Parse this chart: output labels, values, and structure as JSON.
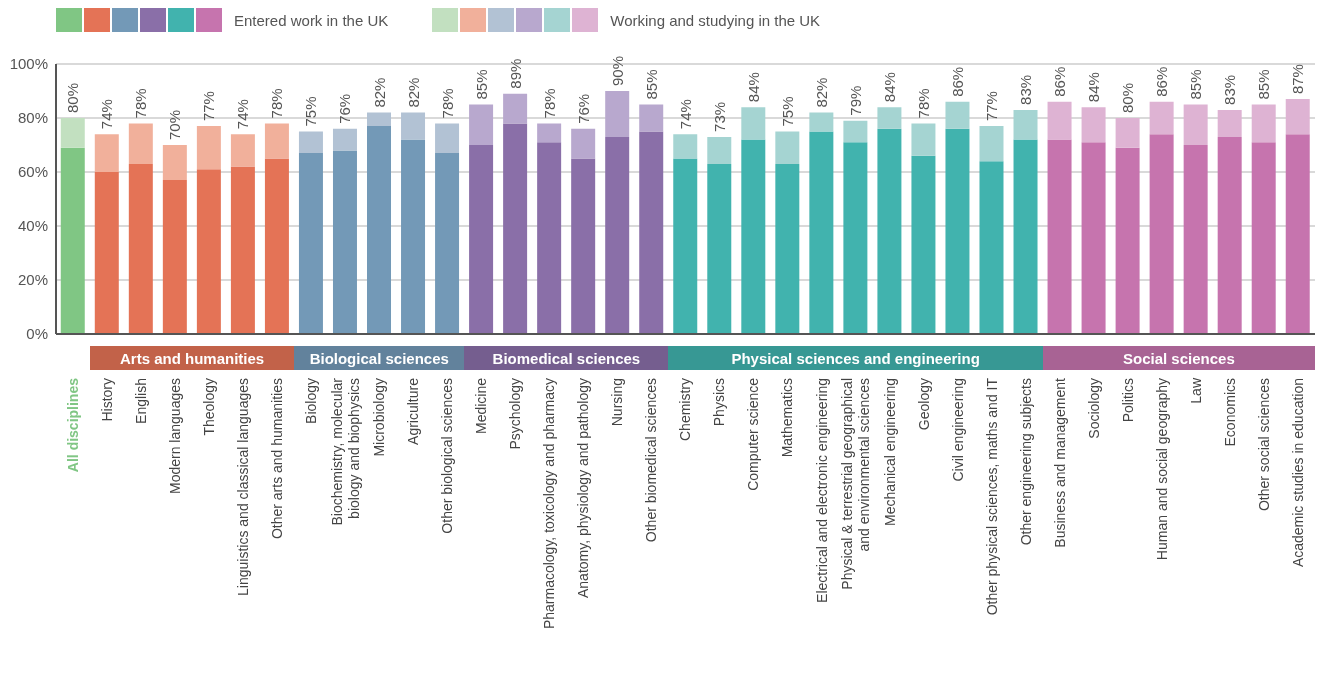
{
  "chart_data": {
    "type": "bar",
    "stacked": true,
    "categories": [
      "All disciplines",
      "History",
      "English",
      "Modern languages",
      "Theology",
      "Linguistics and classical languages",
      "Other arts and humanities",
      "Biology",
      "Biochemistry, molecular biology and biophysics",
      "Microbiology",
      "Agriculture",
      "Other biological sciences",
      "Medicine",
      "Psychology",
      "Pharmacology, toxicology and pharmacy",
      "Anatomy, physiology and pathology",
      "Nursing",
      "Other biomedical sciences",
      "Chemistry",
      "Physics",
      "Computer science",
      "Mathematics",
      "Electrical and electronic engineering",
      "Physical & terrestrial geographical and environmental sciences",
      "Mechanical engineering",
      "Geology",
      "Civil engineering",
      "Other physical sciences, maths and IT",
      "Other engineering subjects",
      "Business and management",
      "Sociology",
      "Politics",
      "Human and social geography",
      "Law",
      "Economics",
      "Other social sciences",
      "Academic studies in education"
    ],
    "series": [
      {
        "name": "Entered work in the UK",
        "colors": [
          "#80c684",
          "#e47356",
          "#e47356",
          "#e47356",
          "#e47356",
          "#e47356",
          "#e47356",
          "#7399b7",
          "#7399b7",
          "#7399b7",
          "#7399b7",
          "#7399b7",
          "#8a6fa8",
          "#8a6fa8",
          "#8a6fa8",
          "#8a6fa8",
          "#8a6fa8",
          "#8a6fa8",
          "#41b3ae",
          "#41b3ae",
          "#41b3ae",
          "#41b3ae",
          "#41b3ae",
          "#41b3ae",
          "#41b3ae",
          "#41b3ae",
          "#41b3ae",
          "#41b3ae",
          "#41b3ae",
          "#c674ae",
          "#c674ae",
          "#c674ae",
          "#c674ae",
          "#c674ae",
          "#c674ae",
          "#c674ae",
          "#c674ae"
        ],
        "values": [
          69,
          60,
          63,
          57,
          61,
          62,
          65,
          67,
          68,
          77,
          72,
          67,
          70,
          78,
          71,
          65,
          73,
          75,
          65,
          63,
          72,
          63,
          75,
          71,
          76,
          66,
          76,
          64,
          72,
          72,
          71,
          69,
          74,
          70,
          73,
          71,
          74
        ]
      },
      {
        "name": "Working and studying in the UK",
        "colors": [
          "#c2e0c0",
          "#f1b09b",
          "#f1b09b",
          "#f1b09b",
          "#f1b09b",
          "#f1b09b",
          "#f1b09b",
          "#b2c2d4",
          "#b2c2d4",
          "#b2c2d4",
          "#b2c2d4",
          "#b2c2d4",
          "#b8a8ce",
          "#b8a8ce",
          "#b8a8ce",
          "#b8a8ce",
          "#b8a8ce",
          "#b8a8ce",
          "#a5d4d2",
          "#a5d4d2",
          "#a5d4d2",
          "#a5d4d2",
          "#a5d4d2",
          "#a5d4d2",
          "#a5d4d2",
          "#a5d4d2",
          "#a5d4d2",
          "#a5d4d2",
          "#a5d4d2",
          "#deb3d3",
          "#deb3d3",
          "#deb3d3",
          "#deb3d3",
          "#deb3d3",
          "#deb3d3",
          "#deb3d3",
          "#deb3d3"
        ],
        "values": [
          11,
          14,
          15,
          13,
          16,
          12,
          13,
          8,
          8,
          5,
          10,
          11,
          15,
          11,
          7,
          11,
          17,
          10,
          9,
          10,
          12,
          12,
          7,
          8,
          8,
          12,
          10,
          13,
          11,
          14,
          13,
          11,
          12,
          15,
          10,
          14,
          13
        ]
      }
    ],
    "totals": [
      "80%",
      "74%",
      "78%",
      "70%",
      "77%",
      "74%",
      "78%",
      "75%",
      "76%",
      "82%",
      "82%",
      "78%",
      "85%",
      "89%",
      "78%",
      "76%",
      "90%",
      "85%",
      "74%",
      "73%",
      "84%",
      "75%",
      "82%",
      "79%",
      "84%",
      "78%",
      "86%",
      "77%",
      "83%",
      "86%",
      "84%",
      "80%",
      "86%",
      "85%",
      "83%",
      "85%",
      "87%"
    ],
    "ylim": [
      0,
      100
    ],
    "yticks": [
      {
        "value": 0,
        "label": "0%"
      },
      {
        "value": 20,
        "label": "20%"
      },
      {
        "value": 40,
        "label": "40%"
      },
      {
        "value": 60,
        "label": "60%"
      },
      {
        "value": 80,
        "label": "80%"
      },
      {
        "value": 100,
        "label": "100%"
      }
    ],
    "grid": "y",
    "legend": "top left",
    "annotations": [
      "Arts and humanities",
      "Biological sciences",
      "Biomedical sciences",
      "Physical sciences and engineering",
      "Social sciences"
    ]
  }
}
